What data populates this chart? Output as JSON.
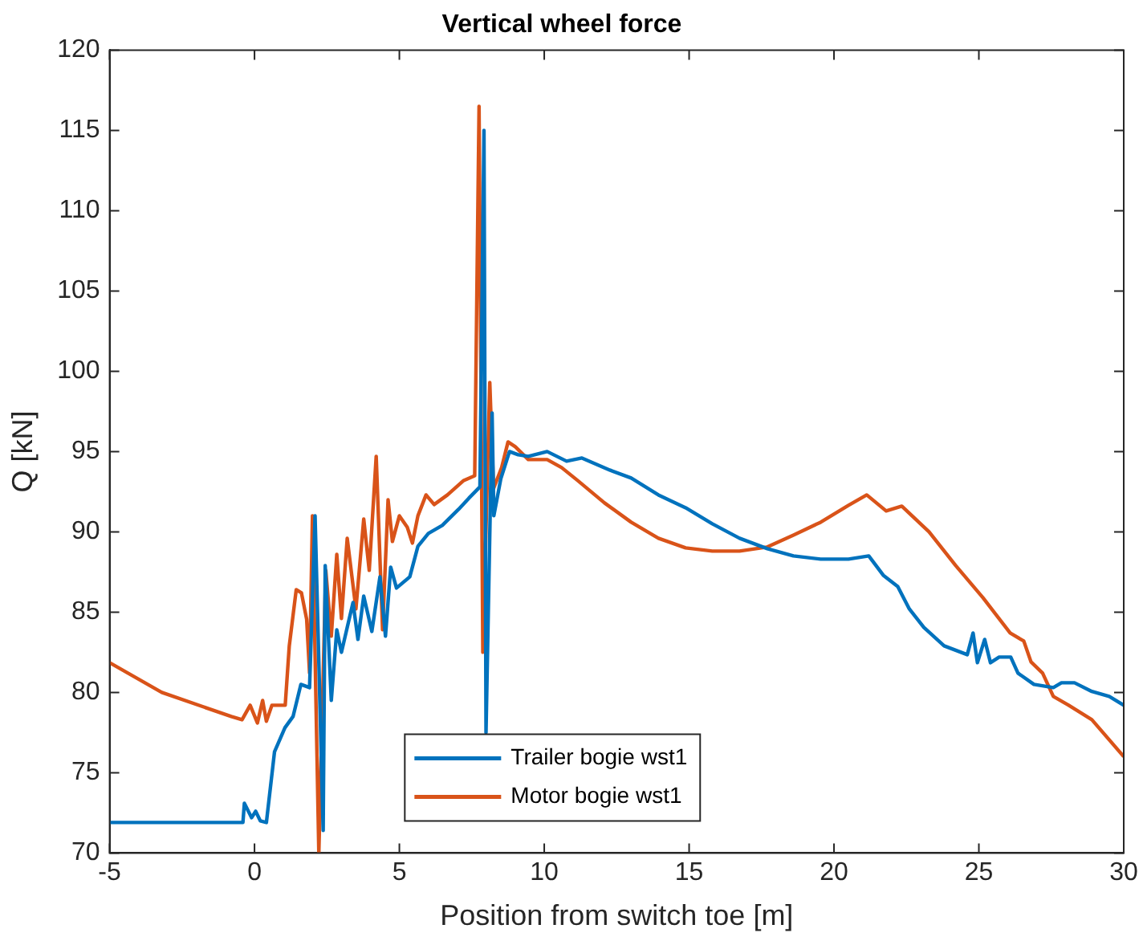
{
  "chart_data": {
    "type": "line",
    "title": "Vertical wheel force",
    "xlabel": "Position from switch toe [m]",
    "ylabel": "Q [kN]",
    "xlim": [
      -5,
      30
    ],
    "xticks": [
      -5,
      0,
      5,
      10,
      15,
      20,
      25,
      30
    ],
    "ylim": [
      70,
      120
    ],
    "yticks": [
      70,
      75,
      80,
      85,
      90,
      95,
      100,
      105,
      110,
      115,
      120
    ],
    "grid": false,
    "legend": "bottom",
    "marker": "none",
    "line_style": "solid",
    "series": [
      {
        "name": "Trailer bogie wst1",
        "color": "#0072bd",
        "x": [
          -5,
          -0.4,
          -0.35,
          -0.1,
          0.04,
          0.2,
          0.41,
          0.69,
          1.05,
          1.33,
          1.6,
          1.9,
          2.09,
          2.37,
          2.44,
          2.65,
          2.84,
          3.0,
          3.4,
          3.57,
          3.77,
          4.05,
          4.33,
          4.52,
          4.7,
          4.9,
          5.36,
          5.64,
          6.0,
          6.48,
          7.04,
          7.4,
          7.78,
          7.92,
          7.99,
          8.2,
          8.26,
          8.5,
          8.8,
          9.1,
          9.45,
          10.1,
          10.77,
          11.3,
          12.26,
          13.0,
          13.94,
          14.88,
          15.8,
          16.74,
          17.7,
          18.6,
          19.54,
          20.5,
          21.2,
          21.7,
          22.2,
          22.6,
          23.1,
          23.8,
          24.6,
          24.8,
          24.95,
          25.2,
          25.4,
          25.7,
          26.1,
          26.35,
          26.9,
          27.57,
          27.85,
          28.3,
          28.9,
          29.5,
          30
        ],
        "values": [
          71.9,
          71.9,
          73.1,
          72.2,
          72.6,
          72.0,
          71.9,
          76.3,
          77.8,
          78.5,
          80.5,
          80.3,
          91.0,
          71.4,
          87.9,
          79.5,
          83.9,
          82.5,
          85.6,
          83.3,
          86.0,
          83.8,
          87.2,
          83.5,
          87.8,
          86.5,
          87.2,
          89.1,
          89.9,
          90.4,
          91.4,
          92.1,
          92.8,
          115,
          77.5,
          97.4,
          91.0,
          93.3,
          95.0,
          94.8,
          94.7,
          95.0,
          94.4,
          94.6,
          93.85,
          93.35,
          92.3,
          91.5,
          90.5,
          89.6,
          88.95,
          88.5,
          88.3,
          88.3,
          88.5,
          87.3,
          86.6,
          85.2,
          84.05,
          82.9,
          82.35,
          83.7,
          81.85,
          83.3,
          81.85,
          82.2,
          82.2,
          81.2,
          80.5,
          80.3,
          80.6,
          80.6,
          80.06,
          79.75,
          79.2
        ]
      },
      {
        "name": "Motor bogie wst1",
        "color": "#d95319",
        "x": [
          -5,
          -3.2,
          -0.8,
          -0.43,
          -0.15,
          0.1,
          0.28,
          0.41,
          0.6,
          1.06,
          1.2,
          1.44,
          1.62,
          1.8,
          1.9,
          2.0,
          2.22,
          2.46,
          2.65,
          2.84,
          3.0,
          3.2,
          3.5,
          3.77,
          3.96,
          4.2,
          4.42,
          4.61,
          4.76,
          5.0,
          5.27,
          5.45,
          5.64,
          5.92,
          6.2,
          6.66,
          7.22,
          7.6,
          7.75,
          7.88,
          8.12,
          8.25,
          8.53,
          8.75,
          9.0,
          9.45,
          10.1,
          10.6,
          11.15,
          12.08,
          13.0,
          13.94,
          14.88,
          15.8,
          16.74,
          17.68,
          18.6,
          19.54,
          20.5,
          21.13,
          21.8,
          22.34,
          23.28,
          24.2,
          25.14,
          26.08,
          26.55,
          26.8,
          27.2,
          27.57,
          28.1,
          28.9,
          30
        ],
        "values": [
          81.85,
          80.0,
          78.5,
          78.3,
          79.2,
          78.1,
          79.5,
          78.2,
          79.2,
          79.2,
          82.9,
          86.4,
          86.2,
          84.55,
          81.2,
          91.0,
          70,
          87.6,
          83.5,
          88.6,
          84.6,
          89.6,
          85.2,
          90.8,
          87.6,
          94.7,
          83.9,
          92.0,
          89.4,
          91.0,
          90.3,
          89.3,
          91.0,
          92.3,
          91.7,
          92.3,
          93.2,
          93.5,
          116.5,
          82.5,
          99.3,
          92.7,
          94.0,
          95.6,
          95.3,
          94.5,
          94.5,
          94.0,
          93.2,
          91.8,
          90.6,
          89.6,
          89.0,
          88.8,
          88.8,
          89.05,
          89.8,
          90.6,
          91.65,
          92.3,
          91.3,
          91.6,
          90.0,
          87.9,
          85.9,
          83.7,
          83.2,
          81.9,
          81.2,
          79.75,
          79.2,
          78.3,
          76.0
        ]
      }
    ]
  }
}
